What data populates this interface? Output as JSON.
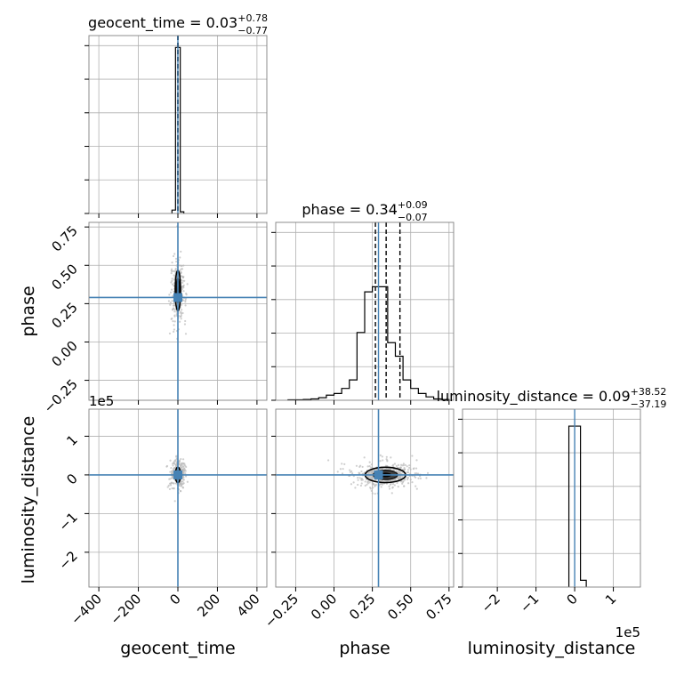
{
  "chart_data": {
    "type": "corner",
    "parameters": [
      "geocent_time",
      "phase",
      "luminosity_distance"
    ],
    "axis_labels": [
      "geocent_time",
      "phase",
      "luminosity_distance"
    ],
    "truths": [
      0,
      0.29,
      0
    ],
    "truth_color": "#4682b4",
    "histogram_color": "#000000",
    "grid": true,
    "titles": [
      {
        "param": "geocent_time",
        "base": "geocent_time = 0.03",
        "plus": "+0.78",
        "minus": "−0.77"
      },
      {
        "param": "phase",
        "base": "phase = 0.34",
        "plus": "+0.09",
        "minus": "−0.07"
      },
      {
        "param": "luminosity_distance",
        "base": "luminosity_distance = 0.09",
        "plus": "+38.52",
        "minus": "−37.19"
      }
    ],
    "ranges": {
      "geocent_time": [
        -450,
        450
      ],
      "phase": [
        -0.38,
        0.78
      ],
      "luminosity_distance": [
        -290000,
        170000
      ]
    },
    "ticks": {
      "geocent_time": {
        "values": [
          -400,
          -200,
          0,
          200,
          400
        ],
        "labels": [
          "−400",
          "−200",
          "0",
          "200",
          "400"
        ]
      },
      "phase": {
        "values": [
          -0.25,
          0,
          0.25,
          0.5,
          0.75
        ],
        "labels": [
          "−0.25",
          "0.00",
          "0.25",
          "0.50",
          "0.75"
        ]
      },
      "luminosity_distance": {
        "values": [
          -200000,
          -100000,
          0,
          100000
        ],
        "labels": [
          "−2",
          "−1",
          "0",
          "1"
        ]
      }
    },
    "offset_texts": {
      "luminosity_distance_y": "1e5",
      "luminosity_distance_x": "1e5"
    },
    "quantile_lines": {
      "geocent_time": [
        -0.74,
        0.03,
        0.81
      ],
      "phase": [
        0.27,
        0.34,
        0.43
      ]
    },
    "histograms": {
      "geocent_time": {
        "bin_edges": [
          -30,
          -12,
          0,
          12,
          30
        ],
        "counts": [
          0.02,
          0.98,
          0.98,
          0.01
        ]
      },
      "phase": {
        "bin_edges": [
          -0.3,
          -0.2,
          -0.15,
          -0.1,
          -0.05,
          0.0,
          0.05,
          0.1,
          0.15,
          0.2,
          0.25,
          0.3,
          0.35,
          0.4,
          0.45,
          0.5,
          0.55,
          0.6,
          0.65,
          0.7,
          0.75
        ],
        "counts": [
          0.003,
          0.005,
          0.008,
          0.015,
          0.03,
          0.04,
          0.07,
          0.12,
          0.4,
          0.64,
          0.67,
          0.67,
          0.34,
          0.26,
          0.12,
          0.07,
          0.04,
          0.02,
          0.008,
          0.004
        ]
      },
      "luminosity_distance": {
        "bin_edges": [
          -15000,
          0,
          15000,
          30000
        ],
        "counts": [
          0.95,
          0.95,
          0.04
        ]
      }
    }
  }
}
